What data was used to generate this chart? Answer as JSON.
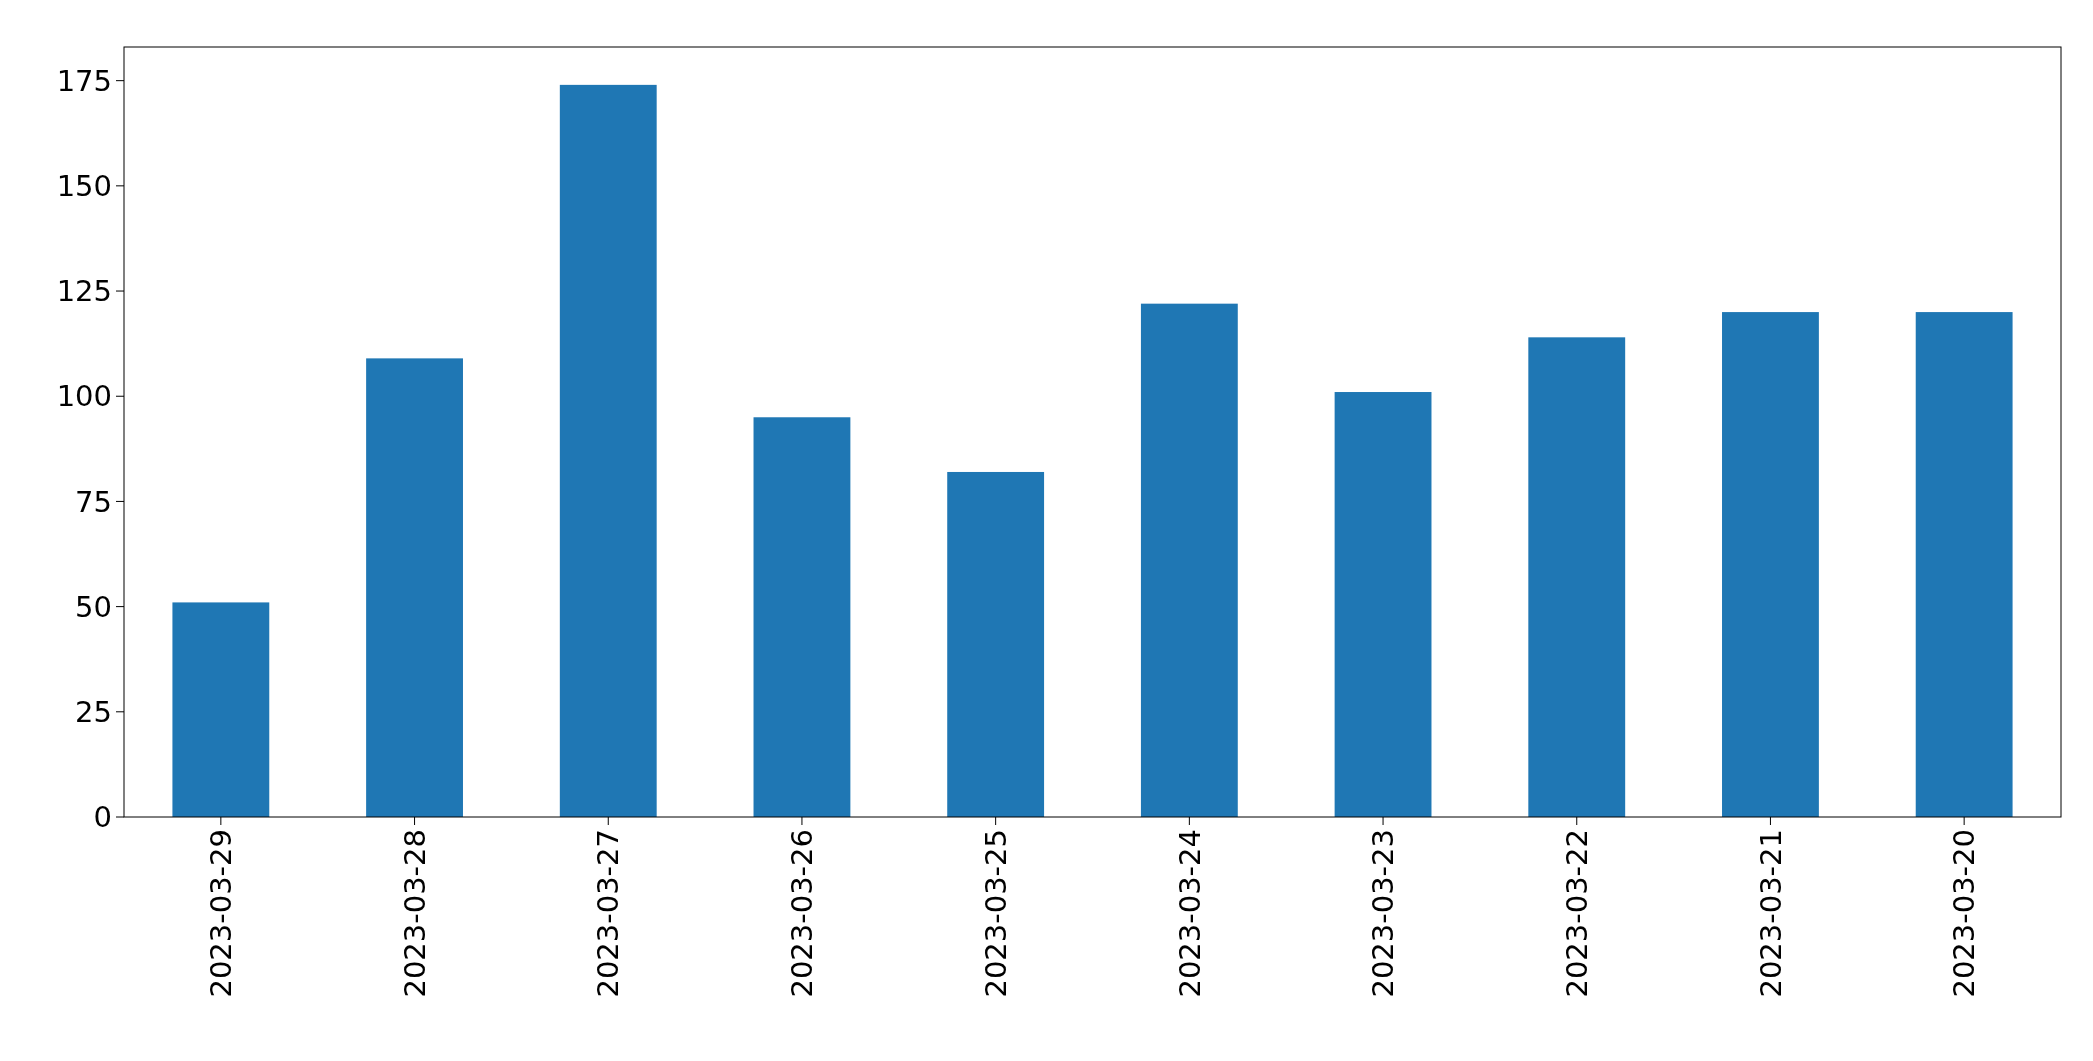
{
  "chart_data": {
    "type": "bar",
    "categories": [
      "2023-03-29",
      "2023-03-28",
      "2023-03-27",
      "2023-03-26",
      "2023-03-25",
      "2023-03-24",
      "2023-03-23",
      "2023-03-22",
      "2023-03-21",
      "2023-03-20"
    ],
    "values": [
      51,
      109,
      174,
      95,
      82,
      122,
      101,
      114,
      120,
      120
    ],
    "color": "#1f77b4",
    "ylim": [
      0,
      183
    ],
    "yticks": [
      0,
      25,
      50,
      75,
      100,
      125,
      150,
      175
    ]
  }
}
